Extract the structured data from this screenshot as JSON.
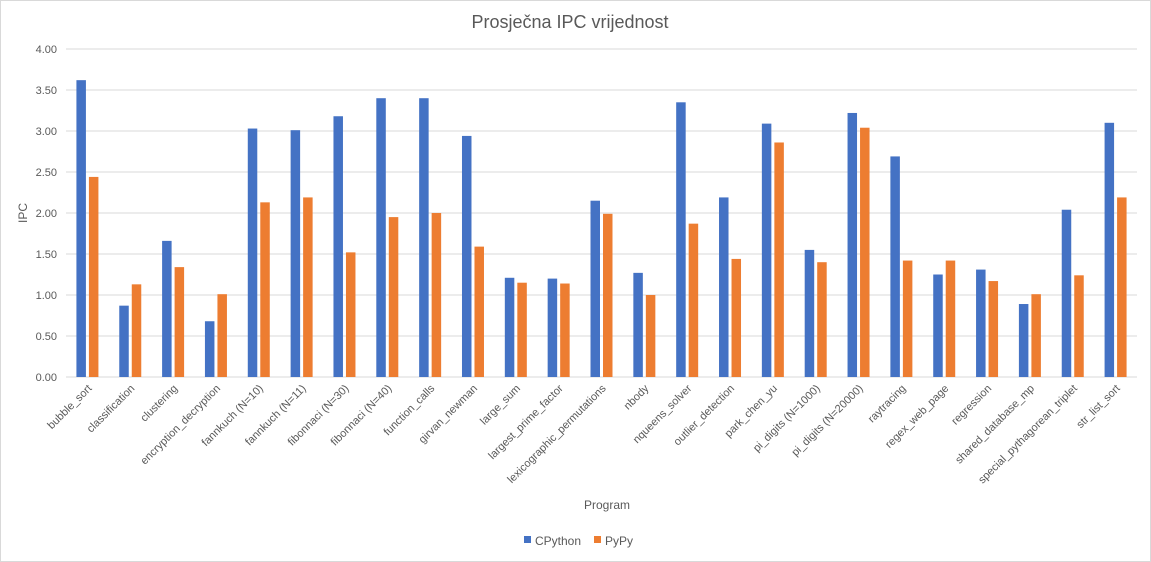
{
  "chart_data": {
    "type": "bar",
    "title": "Prosječna IPC vrijednost",
    "xlabel": "Program",
    "ylabel": "IPC",
    "ylim": [
      0,
      4
    ],
    "yticks": [
      "0.00",
      "0.50",
      "1.00",
      "1.50",
      "2.00",
      "2.50",
      "3.00",
      "3.50",
      "4.00"
    ],
    "grid": true,
    "legend_position": "bottom",
    "categories": [
      "bubble_sort",
      "classification",
      "clustering",
      "encryption_decryption",
      "fannkuch (N=10)",
      "fannkuch (N=11)",
      "fibonnaci (N=30)",
      "fibonnaci (N=40)",
      "function_calls",
      "girvan_newman",
      "large_sum",
      "largest_prime_factor",
      "lexicographic_permutations",
      "nbody",
      "nqueens_solver",
      "outlier_detection",
      "park_chen_yu",
      "pi_digits (N=1000)",
      "pi_digits (N=20000)",
      "raytracing",
      "regex_web_page",
      "regression",
      "shared_database_mp",
      "special_pythagorean_triplet",
      "str_list_sort"
    ],
    "series": [
      {
        "name": "CPython",
        "color": "#4472c4",
        "values": [
          3.62,
          0.87,
          1.66,
          0.68,
          3.03,
          3.01,
          3.18,
          3.4,
          3.4,
          2.94,
          1.21,
          1.2,
          2.15,
          1.27,
          3.35,
          2.19,
          3.09,
          1.55,
          3.22,
          2.69,
          1.25,
          1.31,
          0.89,
          2.04,
          3.1
        ]
      },
      {
        "name": "PyPy",
        "color": "#ed7d31",
        "values": [
          2.44,
          1.13,
          1.34,
          1.01,
          2.13,
          2.19,
          1.52,
          1.95,
          2.0,
          1.59,
          1.15,
          1.14,
          1.99,
          1.0,
          1.87,
          1.44,
          2.86,
          1.4,
          3.04,
          1.42,
          1.42,
          1.17,
          1.01,
          1.24,
          2.19
        ]
      }
    ]
  }
}
